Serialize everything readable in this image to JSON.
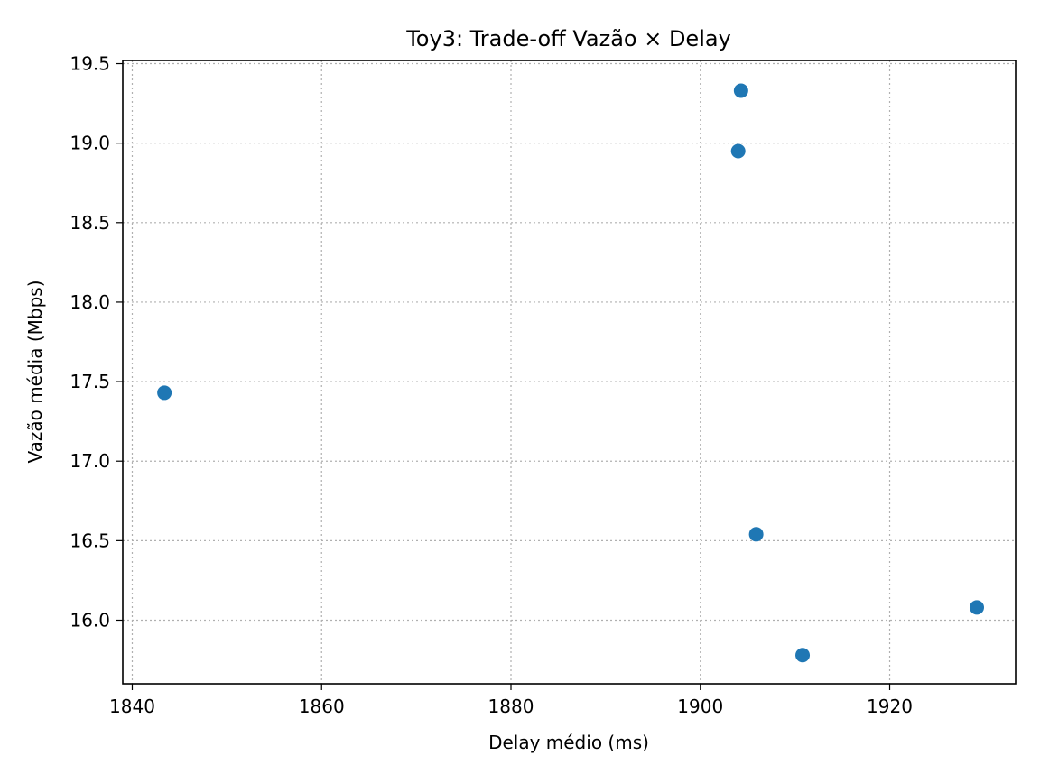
{
  "chart_data": {
    "type": "scatter",
    "title": "Toy3: Trade-off Vazão × Delay",
    "xlabel": "Delay médio (ms)",
    "ylabel": "Vazão média (Mbps)",
    "xlim": [
      1839,
      1933.3
    ],
    "ylim": [
      15.6,
      19.52
    ],
    "xticks": [
      1840,
      1860,
      1880,
      1900,
      1920
    ],
    "xtick_labels": [
      "1840",
      "1860",
      "1880",
      "1900",
      "1920"
    ],
    "yticks": [
      16.0,
      16.5,
      17.0,
      17.5,
      18.0,
      18.5,
      19.0,
      19.5
    ],
    "ytick_labels": [
      "16.0",
      "16.5",
      "17.0",
      "17.5",
      "18.0",
      "18.5",
      "19.0",
      "19.5"
    ],
    "grid": true,
    "marker_color": "#1f77b4",
    "points": [
      {
        "x": 1843.4,
        "y": 17.43
      },
      {
        "x": 1904.0,
        "y": 18.95
      },
      {
        "x": 1904.3,
        "y": 19.33
      },
      {
        "x": 1905.9,
        "y": 16.54
      },
      {
        "x": 1910.8,
        "y": 15.78
      },
      {
        "x": 1929.2,
        "y": 16.08
      }
    ]
  }
}
